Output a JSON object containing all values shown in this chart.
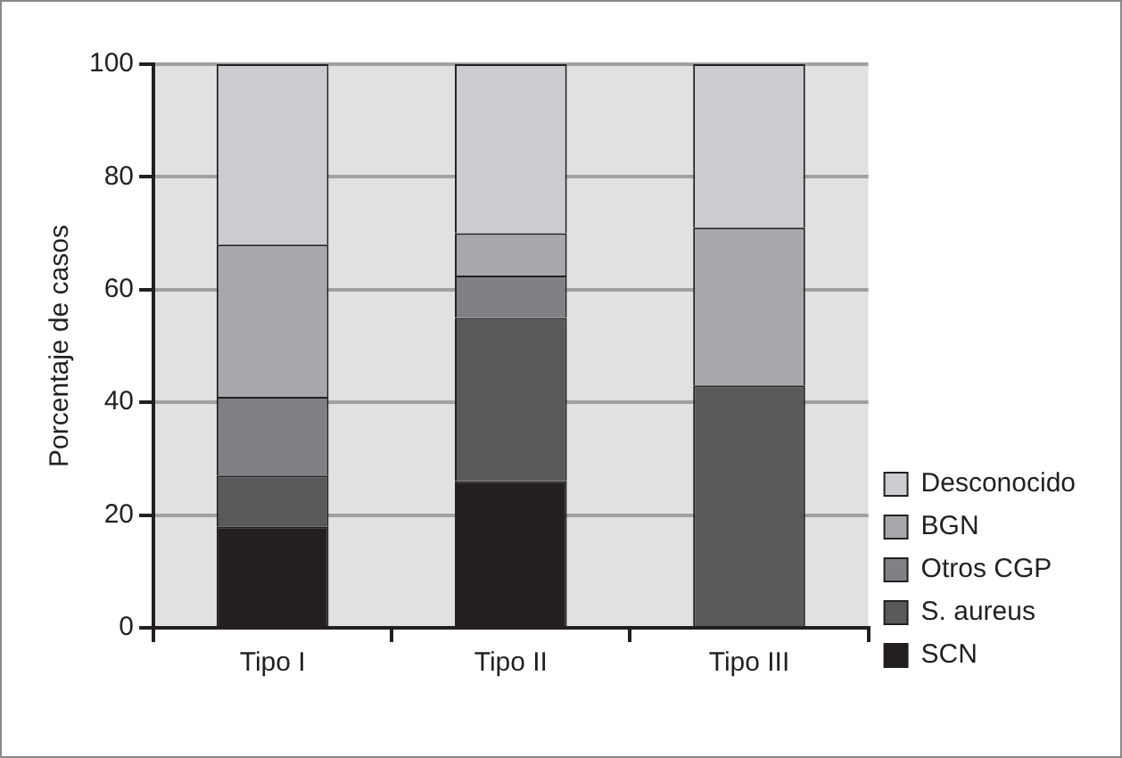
{
  "chart_data": {
    "type": "bar",
    "stacked": true,
    "ylabel": "Porcentaje de casos",
    "categories": [
      "Tipo I",
      "Tipo II",
      "Tipo III"
    ],
    "series": [
      {
        "name": "SCN",
        "color": "#231f20",
        "values": [
          18,
          26,
          0
        ]
      },
      {
        "name": "S. aureus",
        "color": "#58595b",
        "values": [
          9,
          29,
          43
        ]
      },
      {
        "name": "Otros CGP",
        "color": "#808184",
        "values": [
          14,
          7.5,
          0
        ]
      },
      {
        "name": "BGN",
        "color": "#a7a8ab",
        "values": [
          27,
          7.5,
          28
        ]
      },
      {
        "name": "Desconocido",
        "color": "#cbcccf",
        "values": [
          32,
          30,
          29
        ]
      }
    ],
    "ylim": [
      0,
      100
    ],
    "yticks": [
      0,
      20,
      40,
      60,
      80,
      100
    ],
    "grid": "y",
    "legend": "right"
  }
}
